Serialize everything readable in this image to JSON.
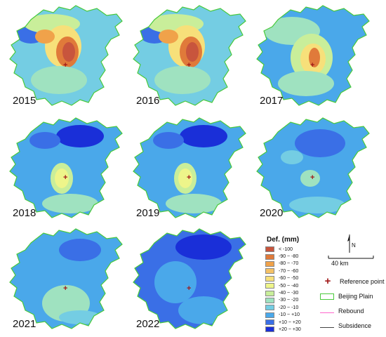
{
  "panels": [
    {
      "year": "2015",
      "scheme": "severe"
    },
    {
      "year": "2016",
      "scheme": "severe"
    },
    {
      "year": "2017",
      "scheme": "moderate"
    },
    {
      "year": "2018",
      "scheme": "mild"
    },
    {
      "year": "2019",
      "scheme": "mild"
    },
    {
      "year": "2020",
      "scheme": "low"
    },
    {
      "year": "2021",
      "scheme": "lower"
    },
    {
      "year": "2022",
      "scheme": "rebound"
    }
  ],
  "legend": {
    "title": "Def. (mm)",
    "classes": [
      {
        "label": "< -100",
        "color": "#c8553d"
      },
      {
        "label": "-90 ~ -80",
        "color": "#e07a3a"
      },
      {
        "label": "-80 ~ -70",
        "color": "#f0a24a"
      },
      {
        "label": "-70 ~ -60",
        "color": "#f5c266"
      },
      {
        "label": "-60 ~ -50",
        "color": "#f7e07a"
      },
      {
        "label": "-50 ~ -40",
        "color": "#eef58a"
      },
      {
        "label": "-40 ~ -30",
        "color": "#c9ee9a"
      },
      {
        "label": "-30 ~ -20",
        "color": "#9fe2c0"
      },
      {
        "label": "-20 ~ -10",
        "color": "#74cde3"
      },
      {
        "label": "-10 ~ +10",
        "color": "#4aa8ea"
      },
      {
        "label": "+10 ~ +20",
        "color": "#3a6fe6"
      },
      {
        "label": "+20 ~ +30",
        "color": "#1a2fd8"
      }
    ]
  },
  "scale_bar": {
    "label": "40 km"
  },
  "north_arrow": {
    "label": "N"
  },
  "key": {
    "reference_point": "Reference point",
    "beijing_plain": "Beijing Plain",
    "rebound": "Rebound",
    "subsidence": "Subsidence"
  },
  "colors": {
    "reference_point": "#a01818",
    "plain_outline": "#49c93b",
    "rebound_line": "#ff66cc",
    "subsidence_line": "#444444"
  }
}
